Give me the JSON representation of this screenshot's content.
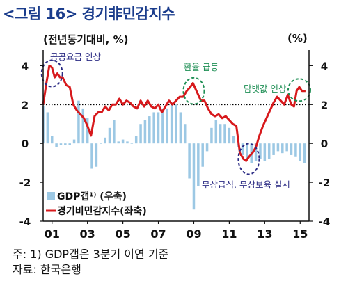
{
  "title": "<그림 16> 경기非민감지수",
  "unit_left": "(전년동기대비, %)",
  "unit_right": "(%)",
  "footnotes": [
    "주: 1) GDP갭은 3분기 이연 기준",
    "자료: 한국은행"
  ],
  "colors": {
    "line": "#d7191c",
    "bar": "#9cc8e4",
    "reference": "#000000",
    "annotation": "#2b2b84",
    "annotation_green": "#1f8f55",
    "title": "#1a3c8c"
  },
  "chart_data": {
    "type": "bar+line",
    "title": "<그림 16> 경기非민감지수",
    "x_tick_labels": [
      "01",
      "03",
      "05",
      "07",
      "09",
      "11",
      "13",
      "15"
    ],
    "x_range": [
      2000.5,
      2015.5
    ],
    "left_axis": {
      "label": "(전년동기대비, %)",
      "ticks": [
        4,
        2,
        0,
        -2,
        -4
      ],
      "range": [
        -4,
        4.8
      ]
    },
    "right_axis": {
      "label": "(%)",
      "ticks": [
        4,
        2,
        0,
        -2,
        -4
      ],
      "range": [
        -4,
        4.8
      ]
    },
    "reference_line": {
      "y": 2,
      "style": "dotted"
    },
    "legend": [
      "GDP갭¹⁾ (우축)",
      "경기비민감지수(좌축)"
    ],
    "legend_placement": "bottom-left",
    "series": [
      {
        "name": "GDP갭¹⁾ (우축)",
        "type": "bar",
        "axis": "right",
        "x": [
          2000.5,
          2000.75,
          2001.0,
          2001.25,
          2001.5,
          2001.75,
          2002.0,
          2002.25,
          2002.5,
          2002.75,
          2003.0,
          2003.25,
          2003.5,
          2003.75,
          2004.0,
          2004.25,
          2004.5,
          2004.75,
          2005.0,
          2005.25,
          2005.5,
          2005.75,
          2006.0,
          2006.25,
          2006.5,
          2006.75,
          2007.0,
          2007.25,
          2007.5,
          2007.75,
          2008.0,
          2008.25,
          2008.5,
          2008.75,
          2009.0,
          2009.25,
          2009.5,
          2009.75,
          2010.0,
          2010.25,
          2010.5,
          2010.75,
          2011.0,
          2011.25,
          2011.5,
          2011.75,
          2012.0,
          2012.25,
          2012.5,
          2012.75,
          2013.0,
          2013.25,
          2013.5,
          2013.75,
          2014.0,
          2014.25,
          2014.5,
          2014.75,
          2015.0,
          2015.25
        ],
        "values": [
          1.9,
          1.6,
          0.4,
          -0.2,
          -0.1,
          -0.1,
          -0.1,
          0.2,
          2.2,
          1.8,
          1.3,
          -1.3,
          -1.2,
          0.0,
          0.3,
          0.8,
          1.2,
          0.1,
          0.2,
          0.1,
          0.0,
          0.4,
          1.0,
          1.2,
          1.4,
          1.6,
          1.6,
          1.8,
          1.8,
          2.1,
          2.0,
          1.6,
          1.0,
          -1.8,
          -3.4,
          -2.2,
          -1.2,
          -0.4,
          0.8,
          1.2,
          1.0,
          1.0,
          0.8,
          0.4,
          -0.2,
          -0.6,
          -0.8,
          -1.0,
          -0.9,
          -0.8,
          -0.9,
          -0.8,
          -0.6,
          -0.4,
          -0.5,
          -0.4,
          -0.6,
          -0.7,
          -0.9,
          -1.0
        ]
      },
      {
        "name": "경기비민감지수(좌축)",
        "type": "line",
        "axis": "left",
        "x": [
          2000.5,
          2000.7,
          2000.85,
          2001.0,
          2001.15,
          2001.3,
          2001.45,
          2001.6,
          2001.8,
          2002.0,
          2002.2,
          2002.4,
          2002.6,
          2002.8,
          2003.0,
          2003.2,
          2003.4,
          2003.6,
          2003.8,
          2004.0,
          2004.2,
          2004.4,
          2004.6,
          2004.8,
          2005.0,
          2005.2,
          2005.4,
          2005.6,
          2005.8,
          2006.0,
          2006.2,
          2006.4,
          2006.6,
          2006.8,
          2007.0,
          2007.2,
          2007.4,
          2007.6,
          2007.8,
          2008.0,
          2008.2,
          2008.4,
          2008.6,
          2008.8,
          2008.95,
          2009.1,
          2009.25,
          2009.4,
          2009.6,
          2009.8,
          2010.0,
          2010.2,
          2010.4,
          2010.6,
          2010.8,
          2011.0,
          2011.2,
          2011.4,
          2011.6,
          2011.8,
          2011.95,
          2012.1,
          2012.3,
          2012.5,
          2012.7,
          2012.9,
          2013.1,
          2013.3,
          2013.5,
          2013.7,
          2013.9,
          2014.1,
          2014.3,
          2014.5,
          2014.65,
          2014.8,
          2014.95,
          2015.1,
          2015.3
        ],
        "values": [
          2.0,
          3.2,
          4.0,
          3.9,
          3.4,
          3.6,
          3.4,
          3.4,
          3.0,
          2.9,
          2.0,
          1.7,
          1.5,
          1.3,
          0.9,
          0.4,
          1.4,
          1.6,
          1.6,
          1.9,
          1.7,
          2.0,
          2.0,
          2.3,
          2.0,
          2.2,
          2.1,
          1.9,
          1.8,
          2.2,
          1.9,
          2.2,
          1.9,
          1.8,
          2.0,
          1.6,
          1.9,
          2.2,
          2.0,
          2.2,
          2.4,
          2.4,
          2.7,
          2.9,
          3.1,
          2.8,
          2.5,
          2.2,
          2.2,
          1.8,
          1.5,
          1.4,
          1.5,
          1.3,
          1.4,
          1.2,
          1.0,
          0.9,
          -0.5,
          -0.8,
          -0.9,
          -0.7,
          -0.5,
          -0.2,
          0.4,
          0.9,
          1.3,
          1.7,
          2.1,
          2.4,
          2.2,
          2.0,
          2.5,
          2.0,
          1.9,
          2.7,
          2.9,
          2.7,
          2.7
        ]
      }
    ],
    "annotations": [
      {
        "text": "공공요금 인상",
        "x": 2001.0,
        "y": 3.6,
        "color": "annotation"
      },
      {
        "text": "환율 급등",
        "x": 2009.0,
        "y": 2.7,
        "color": "annotation_green"
      },
      {
        "text": "담뱃값 인상",
        "x": 2015.0,
        "y": 2.8,
        "color": "annotation_green"
      },
      {
        "text": "무상급식, 무상보육 실시",
        "x": 2012.5,
        "y": -0.8,
        "color": "annotation"
      }
    ]
  }
}
